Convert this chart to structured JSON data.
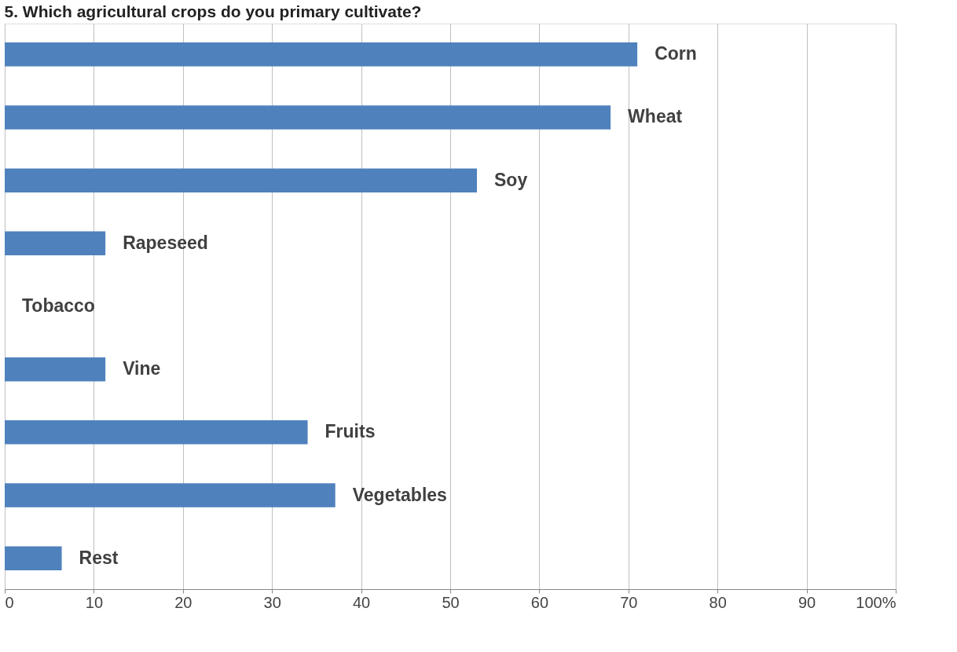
{
  "chart_data": {
    "type": "bar",
    "orientation": "horizontal",
    "title": "5. Which  agricultural crops do you primary cultivate?",
    "categories": [
      "Corn",
      "Wheat",
      "Soy",
      "Rapeseed",
      "Tobacco",
      "Vine",
      "Fruits",
      "Vegetables",
      "Rest"
    ],
    "values": [
      71,
      68,
      53,
      11.3,
      0,
      11.3,
      34,
      37.1,
      6.4
    ],
    "color": "#4f81bd",
    "xlim": [
      0,
      100
    ],
    "xticks": [
      0,
      10,
      20,
      30,
      40,
      50,
      60,
      70,
      80,
      90,
      {
        "value": 100,
        "label": "100%"
      }
    ],
    "grid": "x"
  }
}
